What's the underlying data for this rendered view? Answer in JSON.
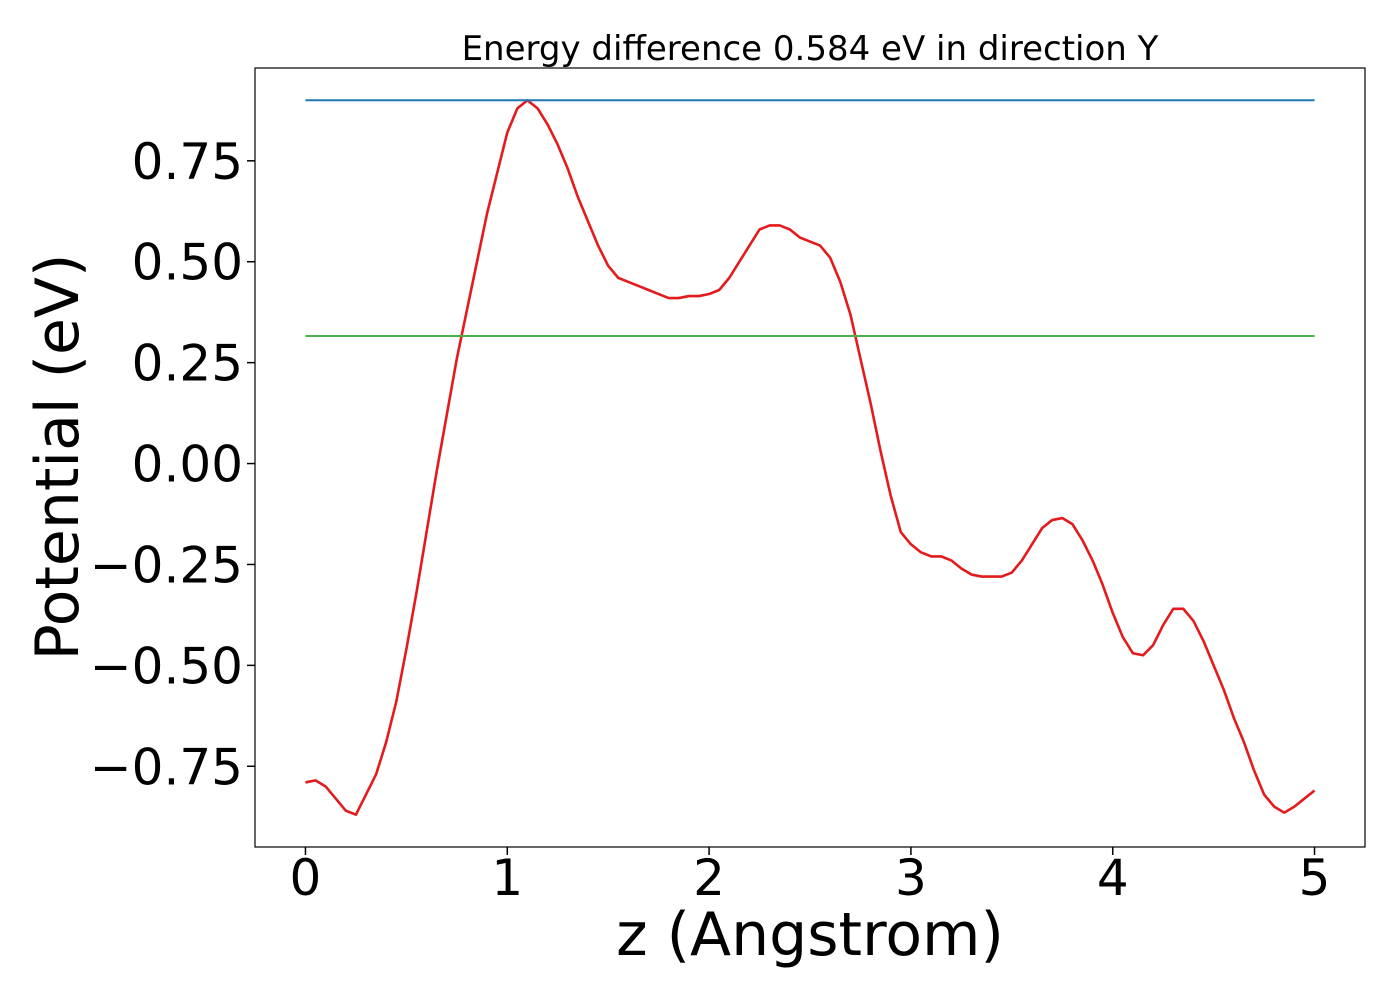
{
  "chart_data": {
    "type": "line",
    "title": "Energy difference 0.584 eV in direction Y",
    "xlabel": "z (Angstrom)",
    "ylabel": "Potential (eV)",
    "xlim": [
      -0.25,
      5.25
    ],
    "ylim": [
      -0.95,
      0.98
    ],
    "x_ticks": [
      0,
      1,
      2,
      3,
      4,
      5
    ],
    "x_tick_labels": [
      "0",
      "1",
      "2",
      "3",
      "4",
      "5"
    ],
    "y_ticks": [
      0.75,
      0.5,
      0.25,
      0.0,
      -0.25,
      -0.5,
      -0.75
    ],
    "y_tick_labels": [
      "0.75",
      "0.50",
      "0.25",
      "0.00",
      "−0.25",
      "−0.50",
      "−0.75"
    ],
    "grid": false,
    "series": [
      {
        "color": "#e41a1c",
        "x": [
          0,
          0.05,
          0.1,
          0.15,
          0.2,
          0.25,
          0.3,
          0.35,
          0.4,
          0.45,
          0.5,
          0.55,
          0.6,
          0.65,
          0.7,
          0.75,
          0.8,
          0.85,
          0.9,
          0.95,
          1.0,
          1.05,
          1.1,
          1.15,
          1.2,
          1.25,
          1.3,
          1.35,
          1.4,
          1.45,
          1.5,
          1.55,
          1.6,
          1.65,
          1.7,
          1.75,
          1.8,
          1.85,
          1.9,
          1.95,
          2.0,
          2.05,
          2.1,
          2.15,
          2.2,
          2.25,
          2.3,
          2.35,
          2.4,
          2.45,
          2.5,
          2.55,
          2.6,
          2.65,
          2.7,
          2.75,
          2.8,
          2.85,
          2.9,
          2.95,
          3.0,
          3.05,
          3.1,
          3.15,
          3.2,
          3.25,
          3.3,
          3.35,
          3.4,
          3.45,
          3.5,
          3.55,
          3.6,
          3.65,
          3.7,
          3.75,
          3.8,
          3.85,
          3.9,
          3.95,
          4.0,
          4.05,
          4.1,
          4.15,
          4.2,
          4.25,
          4.3,
          4.35,
          4.4,
          4.45,
          4.5,
          4.55,
          4.6,
          4.65,
          4.7,
          4.75,
          4.8,
          4.85,
          4.9,
          4.95,
          5.0
        ],
        "y": [
          -0.79,
          -0.785,
          -0.8,
          -0.83,
          -0.86,
          -0.87,
          -0.82,
          -0.77,
          -0.69,
          -0.59,
          -0.46,
          -0.32,
          -0.17,
          -0.02,
          0.12,
          0.26,
          0.38,
          0.5,
          0.62,
          0.72,
          0.82,
          0.88,
          0.9,
          0.88,
          0.84,
          0.79,
          0.73,
          0.66,
          0.6,
          0.54,
          0.49,
          0.46,
          0.45,
          0.44,
          0.43,
          0.42,
          0.41,
          0.41,
          0.415,
          0.415,
          0.42,
          0.43,
          0.46,
          0.5,
          0.54,
          0.58,
          0.59,
          0.59,
          0.58,
          0.56,
          0.55,
          0.54,
          0.51,
          0.45,
          0.37,
          0.26,
          0.15,
          0.03,
          -0.08,
          -0.17,
          -0.2,
          -0.22,
          -0.23,
          -0.23,
          -0.24,
          -0.26,
          -0.275,
          -0.28,
          -0.28,
          -0.28,
          -0.27,
          -0.24,
          -0.2,
          -0.16,
          -0.14,
          -0.135,
          -0.15,
          -0.19,
          -0.24,
          -0.3,
          -0.37,
          -0.43,
          -0.47,
          -0.475,
          -0.45,
          -0.4,
          -0.36,
          -0.36,
          -0.39,
          -0.44,
          -0.5,
          -0.56,
          -0.63,
          -0.69,
          -0.76,
          -0.82,
          -0.85,
          -0.865,
          -0.85,
          -0.83,
          -0.81
        ]
      },
      {
        "color": "#1f77b4",
        "x": [
          0,
          5
        ],
        "y": [
          0.9,
          0.9
        ]
      },
      {
        "color": "#4daf4a",
        "x": [
          0,
          5
        ],
        "y": [
          0.316,
          0.316
        ]
      }
    ]
  }
}
